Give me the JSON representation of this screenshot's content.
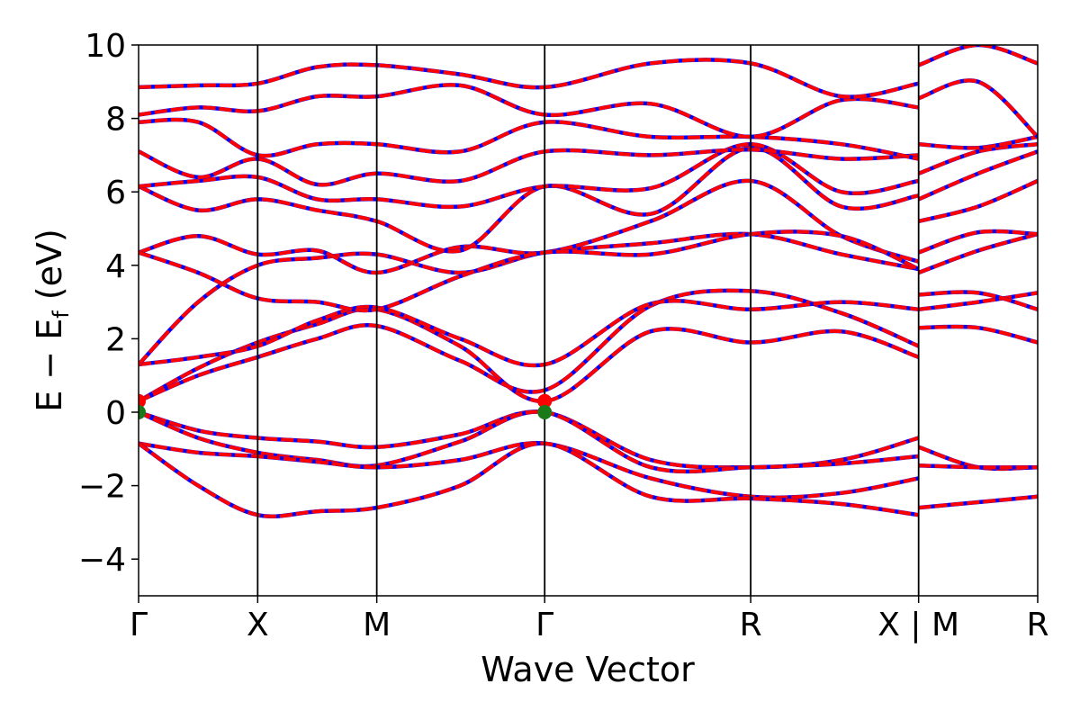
{
  "chart_data": {
    "type": "line",
    "title": "",
    "xlabel": "Wave Vector",
    "ylabel_main": "E − E",
    "ylabel_sub": "f",
    "ylabel_unit": " (eV)",
    "ylim": [
      -5,
      10
    ],
    "yticks": [
      -4,
      -2,
      0,
      2,
      4,
      6,
      8,
      10
    ],
    "ytick_labels": [
      "−4",
      "−2",
      "0",
      "2",
      "4",
      "6",
      "8",
      "10"
    ],
    "xlim": [
      0,
      7.55
    ],
    "kpoints": [
      {
        "label": "Γ",
        "x": 0
      },
      {
        "label": "X",
        "x": 1.0
      },
      {
        "label": "M",
        "x": 2.0
      },
      {
        "label": "Γ",
        "x": 3.41
      },
      {
        "label": "R",
        "x": 5.14
      },
      {
        "label": "X | M",
        "x": 6.55
      },
      {
        "label": "R",
        "x": 7.55
      }
    ],
    "grid": false,
    "colors": {
      "band": "#ff0000",
      "overlay": "#0000ff",
      "vline": "#000000",
      "marker_red": "#ff0000",
      "marker_green": "#1a7a1a"
    },
    "series": [
      {
        "x": [
          0,
          0.5,
          1.0,
          1.5,
          2.0,
          2.7,
          3.41,
          4.3,
          5.14,
          5.9,
          6.55
        ],
        "values": [
          0.0,
          -0.5,
          -0.7,
          -0.8,
          -0.95,
          -0.6,
          0.0,
          -1.3,
          -1.5,
          -1.3,
          -0.7
        ]
      },
      {
        "x": [
          0,
          0.5,
          1.0,
          1.5,
          2.0,
          2.7,
          3.41,
          4.3,
          5.14,
          5.9,
          6.55
        ],
        "values": [
          0.0,
          -0.7,
          -1.1,
          -1.3,
          -1.45,
          -0.8,
          0.0,
          -1.5,
          -1.5,
          -1.4,
          -1.2
        ]
      },
      {
        "x": [
          0,
          0.5,
          1.0,
          1.5,
          2.0,
          2.7,
          3.41,
          4.3,
          5.14,
          5.9,
          6.55
        ],
        "values": [
          -0.85,
          -1.1,
          -1.2,
          -1.35,
          -1.5,
          -1.3,
          -0.85,
          -1.8,
          -2.3,
          -2.2,
          -1.8
        ]
      },
      {
        "x": [
          0,
          0.5,
          1.0,
          1.5,
          2.0,
          2.7,
          3.41,
          4.3,
          5.14,
          5.9,
          6.55
        ],
        "values": [
          -0.85,
          -2.0,
          -2.8,
          -2.7,
          -2.6,
          -2.0,
          -0.85,
          -2.3,
          -2.35,
          -2.5,
          -2.8
        ]
      },
      {
        "x": [
          0,
          0.5,
          1.0,
          1.5,
          2.0,
          2.7,
          3.41,
          4.3,
          5.14,
          5.9,
          6.55
        ],
        "values": [
          0.3,
          1.2,
          1.9,
          2.4,
          2.8,
          1.8,
          0.3,
          2.2,
          1.9,
          2.2,
          1.5
        ]
      },
      {
        "x": [
          0,
          0.5,
          1.0,
          1.5,
          2.0,
          2.7,
          3.41,
          4.3,
          5.14,
          5.9,
          6.55
        ],
        "values": [
          0.3,
          1.0,
          1.5,
          2.0,
          2.35,
          1.4,
          0.6,
          2.9,
          3.3,
          2.7,
          1.8
        ]
      },
      {
        "x": [
          0,
          0.5,
          1.0,
          1.5,
          2.0,
          2.7,
          3.41,
          4.3,
          5.14,
          5.9,
          6.55
        ],
        "values": [
          1.3,
          1.5,
          1.8,
          2.5,
          2.85,
          2.0,
          1.3,
          2.95,
          2.8,
          3.0,
          2.8
        ]
      },
      {
        "x": [
          0,
          0.5,
          1.0,
          1.5,
          2.0,
          2.7,
          3.41,
          4.3,
          5.14,
          5.9,
          6.55
        ],
        "values": [
          1.3,
          3.0,
          4.0,
          4.2,
          4.3,
          3.8,
          4.35,
          4.6,
          4.85,
          4.3,
          3.9
        ]
      },
      {
        "x": [
          0,
          0.5,
          1.0,
          1.5,
          2.0,
          2.7,
          3.41,
          4.3,
          5.14,
          5.9,
          6.55
        ],
        "values": [
          4.35,
          4.8,
          4.3,
          4.4,
          3.8,
          4.5,
          4.35,
          5.2,
          6.3,
          4.8,
          4.1
        ]
      },
      {
        "x": [
          0,
          0.5,
          1.0,
          1.5,
          2.0,
          2.7,
          3.41,
          4.3,
          5.14,
          5.9,
          6.55
        ],
        "values": [
          4.35,
          3.8,
          3.1,
          3.0,
          2.8,
          3.7,
          4.35,
          4.3,
          4.85,
          4.8,
          3.9
        ]
      },
      {
        "x": [
          0,
          0.5,
          1.0,
          1.5,
          2.0,
          2.7,
          3.41,
          4.3,
          5.14,
          5.9,
          6.55
        ],
        "values": [
          6.15,
          5.5,
          5.8,
          5.5,
          5.2,
          4.4,
          6.15,
          5.4,
          7.2,
          5.6,
          5.9
        ]
      },
      {
        "x": [
          0,
          0.5,
          1.0,
          1.5,
          2.0,
          2.7,
          3.41,
          4.3,
          5.14,
          5.9,
          6.55
        ],
        "values": [
          6.15,
          6.3,
          6.4,
          5.8,
          5.8,
          5.6,
          6.15,
          6.1,
          7.3,
          6.0,
          6.3
        ]
      },
      {
        "x": [
          0,
          0.5,
          1.0,
          1.5,
          2.0,
          2.7,
          3.41,
          4.3,
          5.14,
          5.9,
          6.55
        ],
        "values": [
          7.1,
          6.4,
          6.9,
          6.2,
          6.5,
          6.3,
          7.1,
          7.0,
          7.15,
          6.9,
          7.0
        ]
      },
      {
        "x": [
          0,
          0.5,
          1.0,
          1.5,
          2.0,
          2.7,
          3.41,
          4.3,
          5.14,
          5.9,
          6.55
        ],
        "values": [
          7.9,
          7.9,
          7.0,
          7.3,
          7.3,
          7.1,
          7.9,
          7.5,
          7.5,
          7.3,
          6.9
        ]
      },
      {
        "x": [
          0,
          0.5,
          1.0,
          1.5,
          2.0,
          2.7,
          3.41,
          4.3,
          5.14,
          5.9,
          6.55
        ],
        "values": [
          8.1,
          8.3,
          8.2,
          8.6,
          8.6,
          8.9,
          8.1,
          8.4,
          7.5,
          8.5,
          8.3
        ]
      },
      {
        "x": [
          0,
          0.5,
          1.0,
          1.5,
          2.0,
          2.7,
          3.41,
          4.3,
          5.14,
          5.9,
          6.55
        ],
        "values": [
          8.85,
          8.9,
          8.95,
          9.4,
          9.45,
          9.2,
          8.85,
          9.5,
          9.5,
          8.6,
          8.95
        ]
      },
      {
        "x": [
          6.55,
          7.05,
          7.55
        ],
        "values": [
          -0.95,
          -1.5,
          -1.5
        ]
      },
      {
        "x": [
          6.55,
          7.05,
          7.55
        ],
        "values": [
          -1.45,
          -1.5,
          -1.5
        ]
      },
      {
        "x": [
          6.55,
          7.05,
          7.55
        ],
        "values": [
          -2.6,
          -2.45,
          -2.3
        ]
      },
      {
        "x": [
          6.55,
          7.05,
          7.55
        ],
        "values": [
          2.3,
          2.3,
          1.9
        ]
      },
      {
        "x": [
          6.55,
          7.05,
          7.55
        ],
        "values": [
          2.8,
          3.0,
          3.25
        ]
      },
      {
        "x": [
          6.55,
          7.05,
          7.55
        ],
        "values": [
          3.2,
          3.25,
          2.8
        ]
      },
      {
        "x": [
          6.55,
          7.05,
          7.55
        ],
        "values": [
          3.8,
          4.4,
          4.85
        ]
      },
      {
        "x": [
          6.55,
          7.05,
          7.55
        ],
        "values": [
          4.35,
          4.9,
          4.85
        ]
      },
      {
        "x": [
          6.55,
          7.05,
          7.55
        ],
        "values": [
          5.2,
          5.6,
          6.3
        ]
      },
      {
        "x": [
          6.55,
          7.05,
          7.55
        ],
        "values": [
          5.8,
          6.5,
          7.1
        ]
      },
      {
        "x": [
          6.55,
          7.05,
          7.55
        ],
        "values": [
          6.5,
          7.1,
          7.3
        ]
      },
      {
        "x": [
          6.55,
          7.05,
          7.55
        ],
        "values": [
          7.3,
          7.2,
          7.5
        ]
      },
      {
        "x": [
          6.55,
          7.05,
          7.55
        ],
        "values": [
          8.55,
          9.0,
          7.5
        ]
      },
      {
        "x": [
          6.55,
          7.05,
          7.55
        ],
        "values": [
          9.45,
          10.0,
          9.5
        ]
      }
    ],
    "markers": [
      {
        "x": 0,
        "y": 0.3,
        "color": "red"
      },
      {
        "x": 0,
        "y": 0.0,
        "color": "green"
      },
      {
        "x": 3.41,
        "y": 0.3,
        "color": "red"
      },
      {
        "x": 3.41,
        "y": 0.0,
        "color": "green"
      }
    ]
  }
}
